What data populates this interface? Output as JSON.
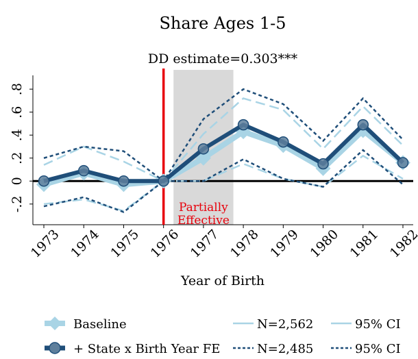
{
  "chart_data": {
    "type": "line",
    "title": "Share Ages 1-5",
    "subtitle": "DD estimate=0.303***",
    "xlabel": "Year of Birth",
    "ylabel": "",
    "x": [
      "1973",
      "1974",
      "1975",
      "1976",
      "1977",
      "1978",
      "1979",
      "1980",
      "1981",
      "1982"
    ],
    "ylim": [
      -0.38,
      0.92
    ],
    "yticks": [
      -0.2,
      0,
      0.2,
      0.4,
      0.6,
      0.8
    ],
    "ytick_labels": [
      "-.2",
      "0",
      ".2",
      ".4",
      ".6",
      ".8"
    ],
    "grid": false,
    "zero_line": true,
    "event_line": {
      "x": "1976",
      "color": "#e8000b"
    },
    "shaded_region": {
      "from": 1976.25,
      "to": 1977.75,
      "label_line1": "Partially",
      "label_line2": "Effective",
      "label_color": "#e8000b"
    },
    "series": [
      {
        "name": "Baseline",
        "n_label": "N=2,562",
        "ci_label": "95% CI",
        "color": "#a9d4e5",
        "values": [
          -0.03,
          0.07,
          -0.03,
          0.0,
          0.2,
          0.43,
          0.31,
          0.11,
          0.44,
          0.16
        ],
        "ci_upper": [
          0.14,
          0.3,
          0.17,
          0.0,
          0.41,
          0.72,
          0.62,
          0.28,
          0.65,
          0.31
        ],
        "ci_lower": [
          -0.2,
          -0.16,
          -0.26,
          0.0,
          0.0,
          0.15,
          0.02,
          -0.05,
          0.22,
          0.02
        ]
      },
      {
        "name": "+ State x Birth Year FE",
        "n_label": "N=2,485",
        "ci_label": "95% CI",
        "color": "#1f4e79",
        "values": [
          0.0,
          0.09,
          0.0,
          0.0,
          0.28,
          0.49,
          0.34,
          0.15,
          0.49,
          0.16
        ],
        "ci_upper": [
          0.2,
          0.3,
          0.26,
          0.0,
          0.54,
          0.8,
          0.67,
          0.35,
          0.72,
          0.36
        ],
        "ci_lower": [
          -0.22,
          -0.14,
          -0.27,
          0.0,
          0.0,
          0.19,
          0.02,
          -0.05,
          0.27,
          -0.03
        ]
      }
    ],
    "legend_position": "bottom"
  }
}
